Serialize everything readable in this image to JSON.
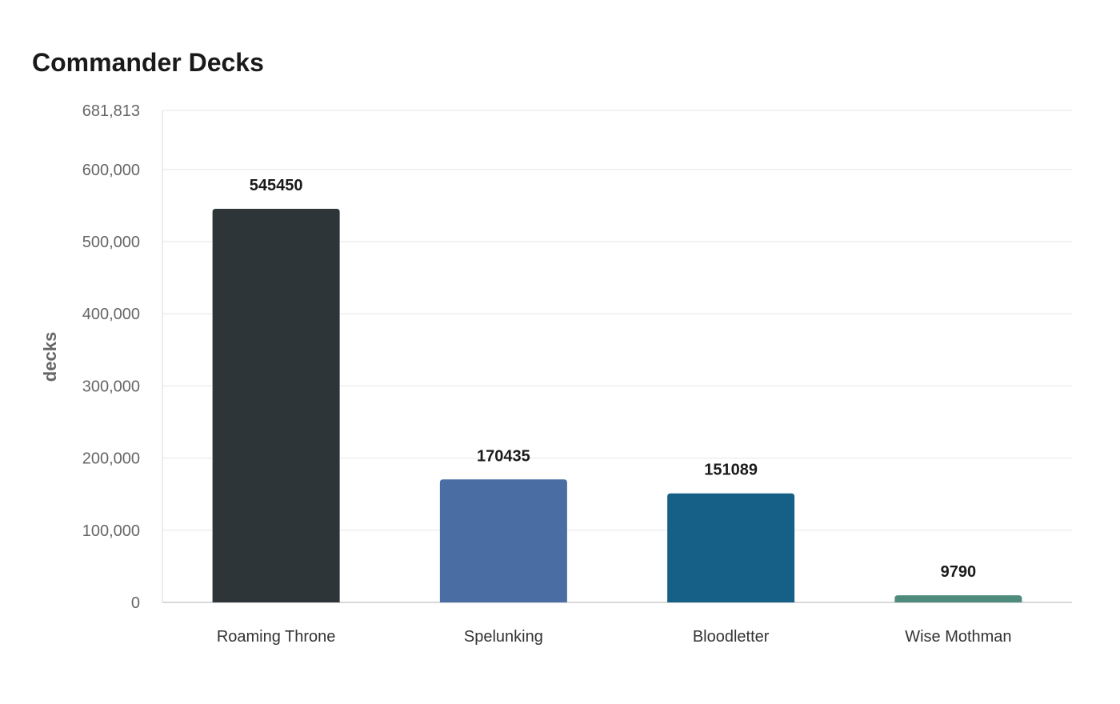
{
  "chart_data": {
    "type": "bar",
    "title": "Commander Decks",
    "xlabel": "",
    "ylabel": "decks",
    "categories": [
      "Roaming Throne",
      "Spelunking",
      "Bloodletter",
      "Wise Mothman"
    ],
    "values": [
      545450,
      170435,
      151089,
      9790
    ],
    "data_labels": [
      "545450",
      "170435",
      "151089",
      "9790"
    ],
    "colors": [
      "#2d3538",
      "#4a6ea3",
      "#165f87",
      "#4e8b7c"
    ],
    "ylim": [
      0,
      681813
    ],
    "y_ticks": [
      0,
      100000,
      200000,
      300000,
      400000,
      500000,
      600000,
      681813
    ],
    "y_tick_labels": [
      "0",
      "100,000",
      "200,000",
      "300,000",
      "400,000",
      "500,000",
      "600,000",
      "681,813"
    ],
    "grid": true,
    "legend": "none"
  }
}
